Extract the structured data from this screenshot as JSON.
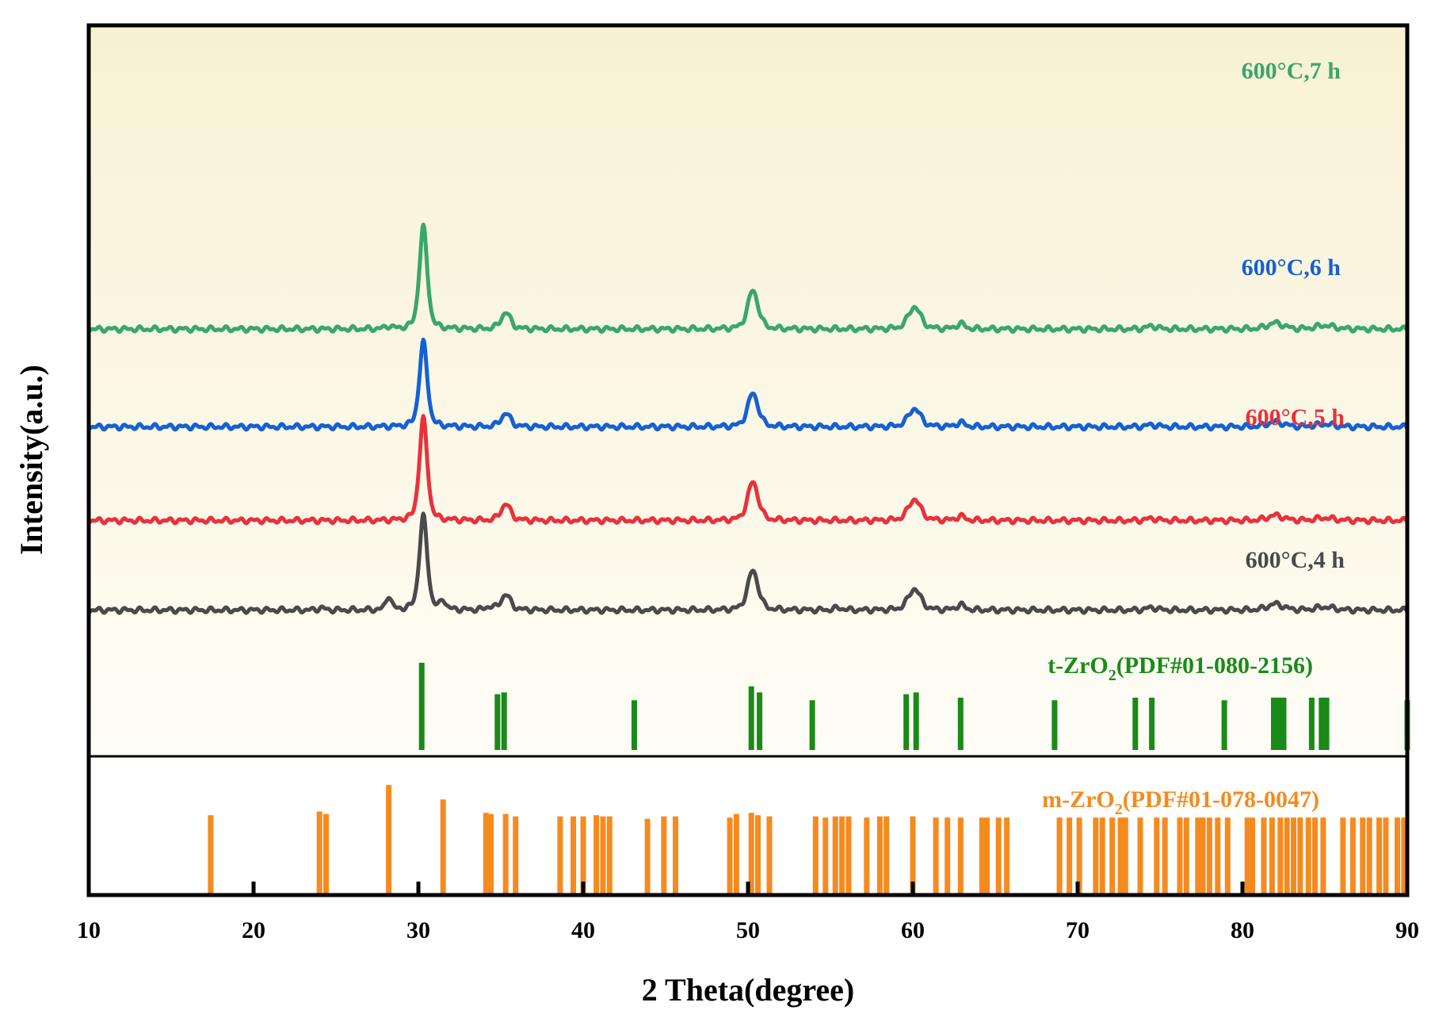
{
  "chart_data": {
    "type": "line",
    "title": "",
    "xlabel": "2 Theta(degree)",
    "ylabel": "Intensity(a.u.)",
    "xlim": [
      10,
      90
    ],
    "xticks": [
      10,
      20,
      30,
      40,
      50,
      60,
      70,
      80,
      90
    ],
    "grid": false,
    "series": [
      {
        "name": "600°C,7 h",
        "color": "#3aa76a",
        "offset": 0.72,
        "peaks": [
          {
            "x": 28.2,
            "h": 0.025,
            "w": 0.35
          },
          {
            "x": 30.3,
            "h": 1.0,
            "w": 0.45
          },
          {
            "x": 35.3,
            "h": 0.16,
            "w": 0.55
          },
          {
            "x": 50.3,
            "h": 0.38,
            "w": 0.6
          },
          {
            "x": 60.1,
            "h": 0.22,
            "w": 0.7
          },
          {
            "x": 62.9,
            "h": 0.05,
            "w": 0.5
          },
          {
            "x": 74.5,
            "h": 0.03,
            "w": 0.6
          },
          {
            "x": 82.0,
            "h": 0.06,
            "w": 0.9
          },
          {
            "x": 85.0,
            "h": 0.035,
            "w": 1.0
          }
        ]
      },
      {
        "name": "600°C,6 h",
        "color": "#1560d4",
        "offset": 0.48,
        "peaks": [
          {
            "x": 30.3,
            "h": 0.83,
            "w": 0.45
          },
          {
            "x": 35.3,
            "h": 0.13,
            "w": 0.55
          },
          {
            "x": 50.3,
            "h": 0.33,
            "w": 0.6
          },
          {
            "x": 60.1,
            "h": 0.18,
            "w": 0.7
          },
          {
            "x": 62.9,
            "h": 0.04,
            "w": 0.5
          },
          {
            "x": 74.5,
            "h": 0.02,
            "w": 0.6
          },
          {
            "x": 82.0,
            "h": 0.05,
            "w": 0.9
          },
          {
            "x": 85.0,
            "h": 0.025,
            "w": 1.0
          }
        ]
      },
      {
        "name": "600°C,5 h",
        "color": "#e8323a",
        "offset": 0.25,
        "peaks": [
          {
            "x": 30.3,
            "h": 1.0,
            "w": 0.45
          },
          {
            "x": 35.3,
            "h": 0.16,
            "w": 0.55
          },
          {
            "x": 50.3,
            "h": 0.38,
            "w": 0.6
          },
          {
            "x": 60.1,
            "h": 0.21,
            "w": 0.7
          },
          {
            "x": 62.9,
            "h": 0.04,
            "w": 0.5
          },
          {
            "x": 74.5,
            "h": 0.02,
            "w": 0.6
          },
          {
            "x": 82.0,
            "h": 0.05,
            "w": 0.9
          },
          {
            "x": 85.0,
            "h": 0.025,
            "w": 1.0
          }
        ]
      },
      {
        "name": "600°C,4 h",
        "color": "#4a4a4a",
        "offset": 0.03,
        "peaks": [
          {
            "x": 24.1,
            "h": 0.02,
            "w": 0.4
          },
          {
            "x": 28.2,
            "h": 0.14,
            "w": 0.3
          },
          {
            "x": 30.3,
            "h": 0.92,
            "w": 0.45
          },
          {
            "x": 31.5,
            "h": 0.09,
            "w": 0.3
          },
          {
            "x": 34.3,
            "h": 0.03,
            "w": 0.4
          },
          {
            "x": 35.3,
            "h": 0.15,
            "w": 0.55
          },
          {
            "x": 50.3,
            "h": 0.39,
            "w": 0.6
          },
          {
            "x": 55.5,
            "h": 0.02,
            "w": 0.5
          },
          {
            "x": 60.1,
            "h": 0.21,
            "w": 0.7
          },
          {
            "x": 62.9,
            "h": 0.05,
            "w": 0.5
          },
          {
            "x": 74.5,
            "h": 0.025,
            "w": 0.6
          },
          {
            "x": 82.0,
            "h": 0.06,
            "w": 0.9
          },
          {
            "x": 85.0,
            "h": 0.03,
            "w": 1.0
          }
        ]
      }
    ],
    "reference_patterns": [
      {
        "name": "t-ZrO",
        "subscript": "2",
        "suffix": "(PDF#01-080-2156)",
        "color": "#1a8a1a",
        "lines": [
          {
            "x": 30.2,
            "h": 1.0
          },
          {
            "x": 34.8,
            "h": 0.64
          },
          {
            "x": 35.2,
            "h": 0.66
          },
          {
            "x": 43.1,
            "h": 0.57
          },
          {
            "x": 50.2,
            "h": 0.73
          },
          {
            "x": 50.7,
            "h": 0.66
          },
          {
            "x": 53.9,
            "h": 0.57
          },
          {
            "x": 59.6,
            "h": 0.64
          },
          {
            "x": 60.2,
            "h": 0.66
          },
          {
            "x": 62.9,
            "h": 0.6
          },
          {
            "x": 68.6,
            "h": 0.57
          },
          {
            "x": 73.5,
            "h": 0.6
          },
          {
            "x": 74.5,
            "h": 0.6
          },
          {
            "x": 78.9,
            "h": 0.57
          },
          {
            "x": 81.9,
            "h": 0.6
          },
          {
            "x": 82.2,
            "h": 0.6
          },
          {
            "x": 82.5,
            "h": 0.6
          },
          {
            "x": 84.2,
            "h": 0.6
          },
          {
            "x": 84.8,
            "h": 0.6
          },
          {
            "x": 85.1,
            "h": 0.6
          },
          {
            "x": 90.0,
            "h": 0.57
          }
        ]
      },
      {
        "name": "m-ZrO",
        "subscript": "2",
        "suffix": "(PDF#01-078-0047)",
        "color": "#f58a1f",
        "lines": [
          {
            "x": 17.4,
            "h": 0.65
          },
          {
            "x": 24.0,
            "h": 0.68
          },
          {
            "x": 24.4,
            "h": 0.66
          },
          {
            "x": 28.2,
            "h": 0.9
          },
          {
            "x": 31.5,
            "h": 0.78
          },
          {
            "x": 34.1,
            "h": 0.67
          },
          {
            "x": 34.4,
            "h": 0.66
          },
          {
            "x": 35.3,
            "h": 0.66
          },
          {
            "x": 35.9,
            "h": 0.64
          },
          {
            "x": 38.6,
            "h": 0.64
          },
          {
            "x": 39.4,
            "h": 0.64
          },
          {
            "x": 40.0,
            "h": 0.64
          },
          {
            "x": 40.8,
            "h": 0.65
          },
          {
            "x": 41.2,
            "h": 0.64
          },
          {
            "x": 41.6,
            "h": 0.64
          },
          {
            "x": 43.9,
            "h": 0.62
          },
          {
            "x": 44.9,
            "h": 0.64
          },
          {
            "x": 45.6,
            "h": 0.64
          },
          {
            "x": 48.9,
            "h": 0.63
          },
          {
            "x": 49.3,
            "h": 0.66
          },
          {
            "x": 50.2,
            "h": 0.67
          },
          {
            "x": 50.6,
            "h": 0.65
          },
          {
            "x": 51.3,
            "h": 0.64
          },
          {
            "x": 54.1,
            "h": 0.64
          },
          {
            "x": 54.7,
            "h": 0.63
          },
          {
            "x": 55.3,
            "h": 0.64
          },
          {
            "x": 55.7,
            "h": 0.64
          },
          {
            "x": 56.1,
            "h": 0.64
          },
          {
            "x": 57.2,
            "h": 0.63
          },
          {
            "x": 58.0,
            "h": 0.64
          },
          {
            "x": 58.4,
            "h": 0.64
          },
          {
            "x": 60.0,
            "h": 0.64
          },
          {
            "x": 61.4,
            "h": 0.63
          },
          {
            "x": 62.1,
            "h": 0.63
          },
          {
            "x": 62.9,
            "h": 0.63
          },
          {
            "x": 64.2,
            "h": 0.63
          },
          {
            "x": 64.5,
            "h": 0.63
          },
          {
            "x": 65.2,
            "h": 0.63
          },
          {
            "x": 65.7,
            "h": 0.63
          },
          {
            "x": 68.9,
            "h": 0.63
          },
          {
            "x": 69.5,
            "h": 0.63
          },
          {
            "x": 70.1,
            "h": 0.63
          },
          {
            "x": 71.1,
            "h": 0.63
          },
          {
            "x": 71.5,
            "h": 0.63
          },
          {
            "x": 72.1,
            "h": 0.63
          },
          {
            "x": 72.6,
            "h": 0.63
          },
          {
            "x": 72.9,
            "h": 0.63
          },
          {
            "x": 73.8,
            "h": 0.63
          },
          {
            "x": 74.8,
            "h": 0.63
          },
          {
            "x": 75.3,
            "h": 0.63
          },
          {
            "x": 76.2,
            "h": 0.63
          },
          {
            "x": 76.6,
            "h": 0.63
          },
          {
            "x": 77.3,
            "h": 0.63
          },
          {
            "x": 77.6,
            "h": 0.63
          },
          {
            "x": 78.0,
            "h": 0.63
          },
          {
            "x": 78.5,
            "h": 0.63
          },
          {
            "x": 79.1,
            "h": 0.63
          },
          {
            "x": 80.3,
            "h": 0.63
          },
          {
            "x": 80.6,
            "h": 0.63
          },
          {
            "x": 81.3,
            "h": 0.63
          },
          {
            "x": 81.8,
            "h": 0.63
          },
          {
            "x": 82.3,
            "h": 0.63
          },
          {
            "x": 82.7,
            "h": 0.63
          },
          {
            "x": 83.1,
            "h": 0.63
          },
          {
            "x": 83.5,
            "h": 0.63
          },
          {
            "x": 84.0,
            "h": 0.63
          },
          {
            "x": 84.4,
            "h": 0.63
          },
          {
            "x": 84.9,
            "h": 0.63
          },
          {
            "x": 86.1,
            "h": 0.63
          },
          {
            "x": 86.7,
            "h": 0.63
          },
          {
            "x": 87.3,
            "h": 0.63
          },
          {
            "x": 87.7,
            "h": 0.63
          },
          {
            "x": 88.3,
            "h": 0.63
          },
          {
            "x": 88.7,
            "h": 0.63
          },
          {
            "x": 89.4,
            "h": 0.63
          },
          {
            "x": 89.8,
            "h": 0.63
          }
        ]
      }
    ]
  }
}
